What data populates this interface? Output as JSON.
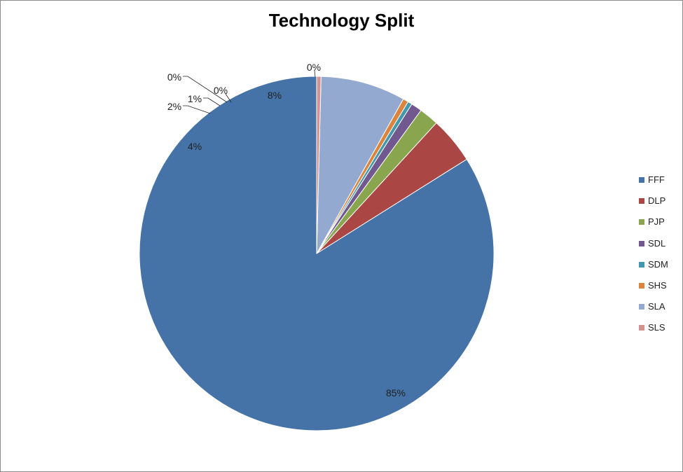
{
  "chart_data": {
    "type": "pie",
    "title": "Technology Split",
    "legend": "right",
    "series": [
      {
        "categories": [
          "FFF",
          "DLP",
          "PJP",
          "SDL",
          "SDM",
          "SHS",
          "SLA",
          "SLS"
        ],
        "values": [
          84.6,
          4.3,
          1.8,
          1.0,
          0.4,
          0.5,
          7.8,
          0.4
        ],
        "data_labels": [
          "85%",
          "4%",
          "2%",
          "1%",
          "0%",
          "0%",
          "8%",
          "0%"
        ],
        "colors": [
          "#4572A7",
          "#AA4643",
          "#89A54E",
          "#71588F",
          "#4198AF",
          "#DB843D",
          "#93A9CF",
          "#D19392"
        ]
      }
    ]
  }
}
